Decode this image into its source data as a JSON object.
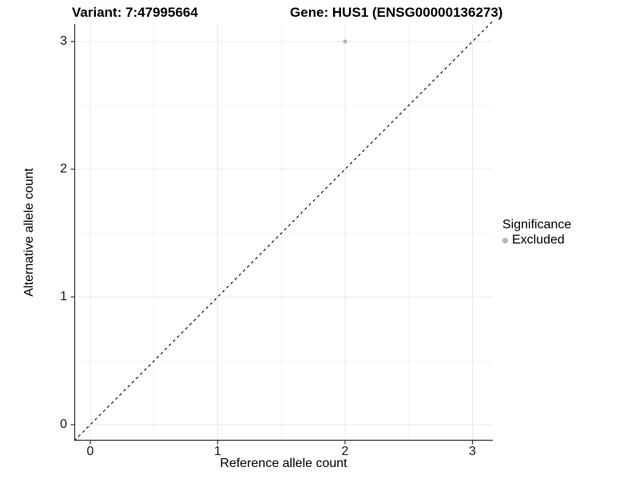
{
  "title": {
    "variant": "Variant: 7:47995664",
    "gene": "Gene: HUS1 (ENSG00000136273)"
  },
  "axes": {
    "x_label": "Reference allele count",
    "y_label": "Alternative allele count",
    "x_ticks": [
      "0",
      "1",
      "2",
      "3"
    ],
    "y_ticks": [
      "0",
      "1",
      "2",
      "3"
    ]
  },
  "legend": {
    "title": "Significance",
    "items": [
      {
        "label": "Excluded",
        "color": "#b3b3b3"
      }
    ]
  },
  "chart_data": {
    "type": "scatter",
    "title": "Variant: 7:47995664        Gene: HUS1 (ENSG00000136273)",
    "xlabel": "Reference allele count",
    "ylabel": "Alternative allele count",
    "xlim": [
      -0.13,
      3.16
    ],
    "ylim": [
      -0.13,
      3.16
    ],
    "x_ticks": [
      0,
      1,
      2,
      3
    ],
    "y_ticks": [
      0,
      1,
      2,
      3
    ],
    "grid": "major and minor gridlines on, light gray",
    "legend_position": "right",
    "legend_title": "Significance",
    "series": [
      {
        "name": "Excluded",
        "color": "#b3b3b3",
        "points": [
          {
            "x": 2,
            "y": 3
          }
        ]
      }
    ],
    "reference_line": {
      "type": "abline",
      "slope": 1,
      "intercept": 0,
      "style": "dashed",
      "color": "#000000"
    }
  },
  "colors": {
    "point": "#b3b3b3",
    "reference_line": "#000000",
    "axis_line": "#333333",
    "grid_major": "#e8e8e8",
    "grid_minor": "#f4f4f4"
  }
}
